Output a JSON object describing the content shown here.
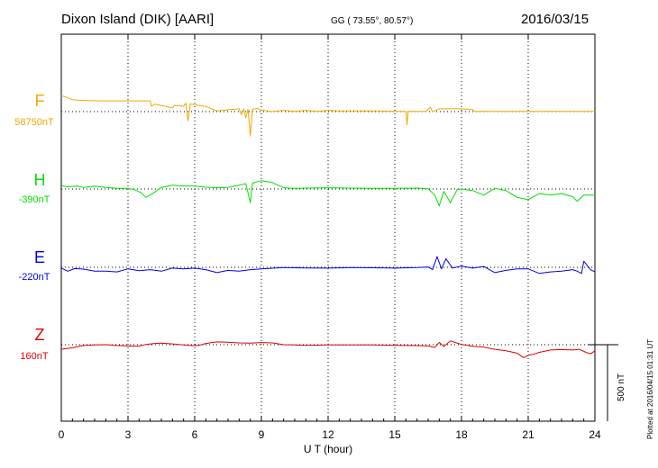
{
  "header": {
    "station": "Dixon Island (DIK)  [AARI]",
    "coords": "GG ( 73.55°,  80.57°)",
    "date": "2016/03/15"
  },
  "footer": {
    "plotted": "Plotted at 2016/04/15 01:31  UT"
  },
  "chart_data": {
    "type": "line",
    "xlabel": "U T (hour)",
    "xlim": [
      0,
      24
    ],
    "xticks": [
      0,
      3,
      6,
      9,
      12,
      15,
      18,
      21,
      24
    ],
    "tick_labels": [
      "0",
      "3",
      "6",
      "9",
      "12",
      "15",
      "18",
      "21",
      "24"
    ],
    "grid": true,
    "scale_bar": {
      "value_nT": 500,
      "label": "500 nT"
    },
    "series": [
      {
        "name": "F",
        "baseline_label": "58750nT",
        "color": "#f0a800",
        "points": [
          [
            0,
            104
          ],
          [
            0.2,
            96
          ],
          [
            0.5,
            78
          ],
          [
            0.8,
            74
          ],
          [
            1.2,
            72
          ],
          [
            2,
            70
          ],
          [
            3,
            70
          ],
          [
            4,
            70
          ],
          [
            4.05,
            36
          ],
          [
            4.2,
            48
          ],
          [
            4.3,
            45
          ],
          [
            4.5,
            40
          ],
          [
            5,
            25
          ],
          [
            5.1,
            40
          ],
          [
            5.5,
            35
          ],
          [
            5.6,
            55
          ],
          [
            5.7,
            -60
          ],
          [
            5.8,
            50
          ],
          [
            6,
            46
          ],
          [
            6.5,
            34
          ],
          [
            7,
            4
          ],
          [
            7.5,
            12
          ],
          [
            8,
            18
          ],
          [
            8.1,
            -20
          ],
          [
            8.2,
            18
          ],
          [
            8.3,
            -40
          ],
          [
            8.4,
            16
          ],
          [
            8.5,
            -160
          ],
          [
            8.6,
            15
          ],
          [
            8.8,
            22
          ],
          [
            9,
            10
          ],
          [
            9.5,
            0
          ],
          [
            10,
            8
          ],
          [
            10.5,
            2
          ],
          [
            11,
            8
          ],
          [
            11.5,
            2
          ],
          [
            12,
            8
          ],
          [
            12.5,
            5
          ],
          [
            13,
            4
          ],
          [
            14,
            4
          ],
          [
            15,
            2
          ],
          [
            15.5,
            2
          ],
          [
            15.55,
            -85
          ],
          [
            15.6,
            2
          ],
          [
            16,
            2
          ],
          [
            16.4,
            2
          ],
          [
            16.6,
            28
          ],
          [
            16.7,
            -2
          ],
          [
            17,
            18
          ],
          [
            17.5,
            18
          ],
          [
            18,
            18
          ],
          [
            18.5,
            14
          ],
          [
            18.6,
            2
          ],
          [
            19,
            2
          ],
          [
            20,
            2
          ],
          [
            21,
            2
          ],
          [
            22,
            2
          ],
          [
            23,
            2
          ],
          [
            24,
            2
          ]
        ]
      },
      {
        "name": "H",
        "baseline_label": "-390nT",
        "color": "#00e000",
        "points": [
          [
            0,
            22
          ],
          [
            0.3,
            14
          ],
          [
            0.7,
            20
          ],
          [
            1,
            10
          ],
          [
            1.5,
            18
          ],
          [
            2,
            10
          ],
          [
            2.5,
            5
          ],
          [
            3,
            4
          ],
          [
            3.3,
            -5
          ],
          [
            3.6,
            -25
          ],
          [
            3.8,
            -55
          ],
          [
            4,
            -40
          ],
          [
            4.3,
            -10
          ],
          [
            4.5,
            10
          ],
          [
            5,
            24
          ],
          [
            5.5,
            20
          ],
          [
            6,
            20
          ],
          [
            6.5,
            12
          ],
          [
            7,
            8
          ],
          [
            7.5,
            10
          ],
          [
            8,
            25
          ],
          [
            8.3,
            35
          ],
          [
            8.5,
            -90
          ],
          [
            8.6,
            38
          ],
          [
            9,
            55
          ],
          [
            9.5,
            42
          ],
          [
            10,
            8
          ],
          [
            10.5,
            4
          ],
          [
            11,
            6
          ],
          [
            12,
            8
          ],
          [
            13,
            6
          ],
          [
            14,
            5
          ],
          [
            15,
            4
          ],
          [
            16,
            6
          ],
          [
            16.5,
            2
          ],
          [
            16.8,
            -40
          ],
          [
            17,
            -110
          ],
          [
            17.2,
            -15
          ],
          [
            17.5,
            -90
          ],
          [
            17.8,
            -5
          ],
          [
            18,
            0
          ],
          [
            18.5,
            -10
          ],
          [
            19,
            -40
          ],
          [
            19.5,
            5
          ],
          [
            20,
            -10
          ],
          [
            20.5,
            -55
          ],
          [
            21,
            -70
          ],
          [
            21.5,
            -30
          ],
          [
            22,
            -40
          ],
          [
            22.5,
            -30
          ],
          [
            23,
            -50
          ],
          [
            23.2,
            -80
          ],
          [
            23.5,
            -40
          ],
          [
            24,
            -40
          ]
        ]
      },
      {
        "name": "E",
        "baseline_label": "-220nT",
        "color": "#0000e0",
        "points": [
          [
            0,
            -5
          ],
          [
            0.3,
            -25
          ],
          [
            0.6,
            -8
          ],
          [
            1,
            -12
          ],
          [
            1.5,
            -25
          ],
          [
            2,
            -25
          ],
          [
            2.5,
            -30
          ],
          [
            3,
            -10
          ],
          [
            3.5,
            -22
          ],
          [
            4,
            -15
          ],
          [
            4.5,
            -25
          ],
          [
            5,
            -5
          ],
          [
            5.5,
            -10
          ],
          [
            6,
            -5
          ],
          [
            6.5,
            -15
          ],
          [
            7,
            -35
          ],
          [
            7.5,
            -20
          ],
          [
            8,
            -25
          ],
          [
            8.5,
            -15
          ],
          [
            9,
            -10
          ],
          [
            10,
            -2
          ],
          [
            11,
            -4
          ],
          [
            12,
            -5
          ],
          [
            13,
            -2
          ],
          [
            14,
            -3
          ],
          [
            15,
            -5
          ],
          [
            16,
            -2
          ],
          [
            16.5,
            2
          ],
          [
            16.7,
            -15
          ],
          [
            16.9,
            70
          ],
          [
            17.1,
            -10
          ],
          [
            17.3,
            55
          ],
          [
            17.6,
            -5
          ],
          [
            18,
            8
          ],
          [
            18.5,
            -5
          ],
          [
            19,
            5
          ],
          [
            19.5,
            -35
          ],
          [
            20,
            -20
          ],
          [
            20.5,
            -10
          ],
          [
            21,
            -10
          ],
          [
            21.5,
            -40
          ],
          [
            22,
            -30
          ],
          [
            22.5,
            -25
          ],
          [
            23,
            -15
          ],
          [
            23.2,
            -25
          ],
          [
            23.4,
            -40
          ],
          [
            23.5,
            40
          ],
          [
            23.8,
            -15
          ],
          [
            24,
            -30
          ]
        ]
      },
      {
        "name": "Z",
        "baseline_label": "160nT",
        "color": "#e00000",
        "points": [
          [
            0,
            -30
          ],
          [
            0.5,
            -20
          ],
          [
            1,
            -5
          ],
          [
            1.5,
            -2
          ],
          [
            2,
            0
          ],
          [
            2.5,
            -5
          ],
          [
            3,
            -8
          ],
          [
            3.5,
            -10
          ],
          [
            3.8,
            2
          ],
          [
            4.2,
            8
          ],
          [
            4.5,
            10
          ],
          [
            5,
            5
          ],
          [
            5.5,
            -2
          ],
          [
            5.8,
            -5
          ],
          [
            6,
            -6
          ],
          [
            6.2,
            -4
          ],
          [
            6.5,
            8
          ],
          [
            7,
            18
          ],
          [
            7.5,
            16
          ],
          [
            8,
            12
          ],
          [
            8.5,
            10
          ],
          [
            9,
            14
          ],
          [
            9.5,
            12
          ],
          [
            10,
            0
          ],
          [
            10.5,
            -2
          ],
          [
            11,
            -4
          ],
          [
            12,
            -2
          ],
          [
            13,
            -2
          ],
          [
            14,
            -2
          ],
          [
            15,
            -4
          ],
          [
            16,
            -6
          ],
          [
            16.5,
            -8
          ],
          [
            16.8,
            -18
          ],
          [
            17,
            15
          ],
          [
            17.2,
            -12
          ],
          [
            17.5,
            25
          ],
          [
            17.7,
            15
          ],
          [
            18,
            2
          ],
          [
            18.5,
            -10
          ],
          [
            19,
            -15
          ],
          [
            19.5,
            -30
          ],
          [
            20,
            -40
          ],
          [
            20.5,
            -55
          ],
          [
            20.8,
            -85
          ],
          [
            21,
            -70
          ],
          [
            21.3,
            -60
          ],
          [
            21.5,
            -50
          ],
          [
            22,
            -35
          ],
          [
            22.5,
            -32
          ],
          [
            23,
            -35
          ],
          [
            23.3,
            -30
          ],
          [
            23.6,
            -50
          ],
          [
            23.8,
            -60
          ],
          [
            24,
            -40
          ]
        ]
      }
    ]
  }
}
